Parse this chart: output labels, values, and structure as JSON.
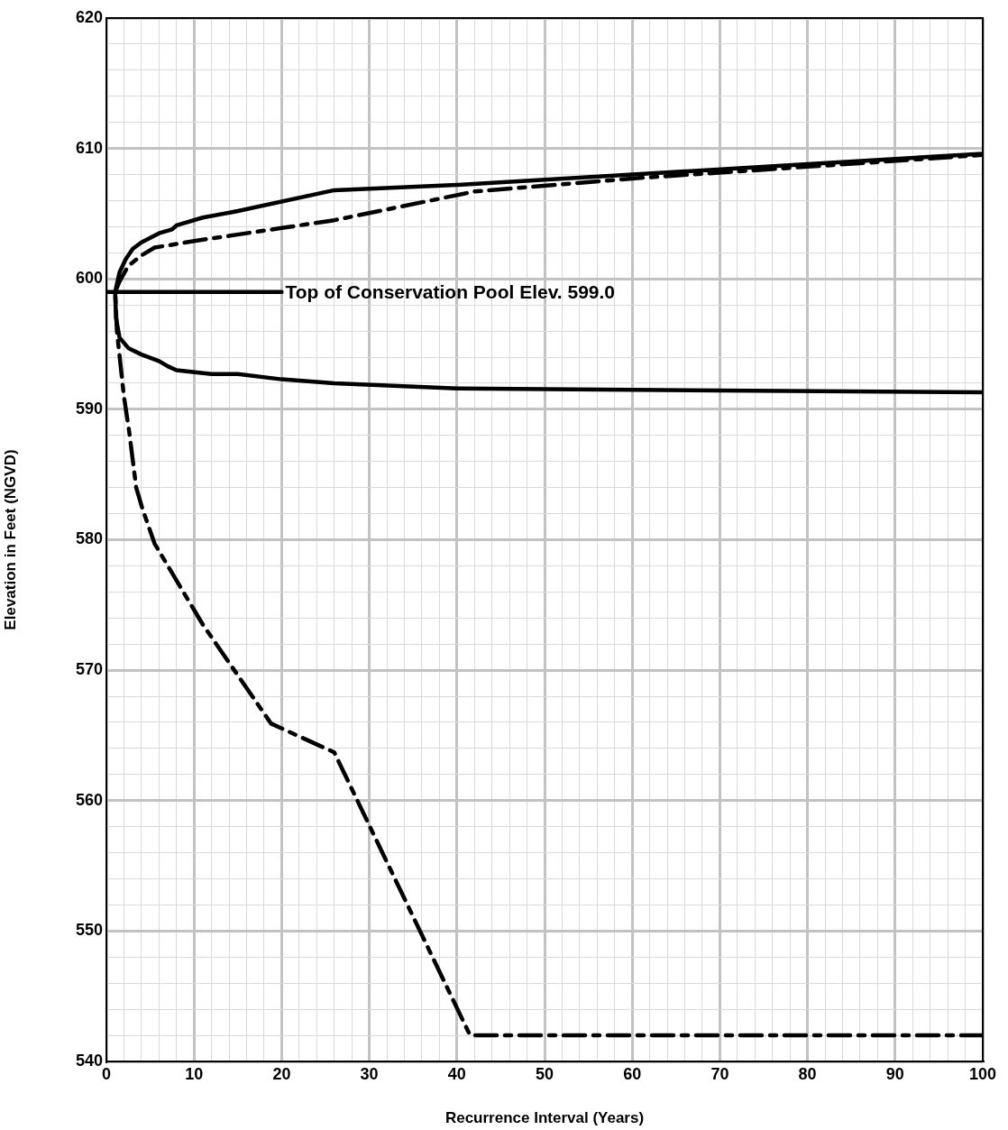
{
  "chart_data": {
    "type": "line",
    "xlabel": "Recurrence Interval (Years)",
    "ylabel": "Elevation in Feet (NGVD)",
    "xlim": [
      0,
      100
    ],
    "ylim": [
      540,
      620
    ],
    "xticks": [
      0,
      {
        "value": 2,
        "label": null
      },
      {
        "value": 4,
        "label": null
      },
      {
        "value": 6,
        "label": null
      },
      {
        "value": 8,
        "label": null
      },
      10,
      {
        "value": 12,
        "label": null
      },
      {
        "value": 14,
        "label": null
      },
      {
        "value": 16,
        "label": null
      },
      {
        "value": 18,
        "label": null
      },
      20,
      {
        "value": 22,
        "label": null
      },
      {
        "value": 24,
        "label": null
      },
      {
        "value": 26,
        "label": null
      },
      {
        "value": 28,
        "label": null
      },
      30,
      {
        "value": 32,
        "label": null
      },
      {
        "value": 34,
        "label": null
      },
      {
        "value": 36,
        "label": null
      },
      {
        "value": 38,
        "label": null
      },
      40,
      {
        "value": 42,
        "label": null
      },
      {
        "value": 44,
        "label": null
      },
      {
        "value": 46,
        "label": null
      },
      {
        "value": 48,
        "label": null
      },
      50,
      {
        "value": 52,
        "label": null
      },
      {
        "value": 54,
        "label": null
      },
      {
        "value": 56,
        "label": null
      },
      {
        "value": 58,
        "label": null
      },
      60,
      {
        "value": 62,
        "label": null
      },
      {
        "value": 64,
        "label": null
      },
      {
        "value": 66,
        "label": null
      },
      {
        "value": 68,
        "label": null
      },
      70,
      {
        "value": 72,
        "label": null
      },
      {
        "value": 74,
        "label": null
      },
      {
        "value": 76,
        "label": null
      },
      {
        "value": 78,
        "label": null
      },
      80,
      {
        "value": 82,
        "label": null
      },
      {
        "value": 84,
        "label": null
      },
      {
        "value": 86,
        "label": null
      },
      {
        "value": 88,
        "label": null
      },
      90,
      {
        "value": 92,
        "label": null
      },
      {
        "value": 94,
        "label": null
      },
      {
        "value": 96,
        "label": null
      },
      {
        "value": 98,
        "label": null
      },
      100
    ],
    "yticks": [
      540,
      {
        "value": 542,
        "label": null
      },
      {
        "value": 544,
        "label": null
      },
      {
        "value": 546,
        "label": null
      },
      {
        "value": 548,
        "label": null
      },
      550,
      {
        "value": 552,
        "label": null
      },
      {
        "value": 554,
        "label": null
      },
      {
        "value": 556,
        "label": null
      },
      {
        "value": 558,
        "label": null
      },
      560,
      {
        "value": 562,
        "label": null
      },
      {
        "value": 564,
        "label": null
      },
      {
        "value": 566,
        "label": null
      },
      {
        "value": 568,
        "label": null
      },
      570,
      {
        "value": 572,
        "label": null
      },
      {
        "value": 574,
        "label": null
      },
      {
        "value": 576,
        "label": null
      },
      {
        "value": 578,
        "label": null
      },
      580,
      {
        "value": 582,
        "label": null
      },
      {
        "value": 584,
        "label": null
      },
      {
        "value": 586,
        "label": null
      },
      {
        "value": 588,
        "label": null
      },
      590,
      {
        "value": 592,
        "label": null
      },
      {
        "value": 594,
        "label": null
      },
      {
        "value": 596,
        "label": null
      },
      {
        "value": 598,
        "label": null
      },
      600,
      {
        "value": 602,
        "label": null
      },
      {
        "value": 604,
        "label": null
      },
      {
        "value": 606,
        "label": null
      },
      {
        "value": 608,
        "label": null
      },
      610,
      {
        "value": 612,
        "label": null
      },
      {
        "value": 614,
        "label": null
      },
      {
        "value": 616,
        "label": null
      },
      {
        "value": 618,
        "label": null
      },
      620
    ],
    "grid": true,
    "legend": false,
    "marker": "none",
    "series": [
      {
        "color": "#000000",
        "line_style": "solid",
        "x": [
          100,
          60,
          40,
          26,
          20,
          15,
          12,
          8,
          7,
          6,
          4,
          2.5,
          1.5,
          1.1,
          1,
          1.5,
          2.2,
          3,
          4,
          6,
          7.5,
          8,
          11,
          15,
          26,
          40,
          60,
          80,
          100
        ],
        "values": [
          591.3,
          591.5,
          591.6,
          592,
          592.3,
          592.7,
          592.7,
          593,
          593.3,
          593.7,
          594.2,
          594.7,
          595.5,
          597,
          599,
          600.5,
          601.5,
          602.3,
          602.8,
          603.5,
          603.8,
          604.1,
          604.7,
          605.2,
          606.8,
          607.2,
          608,
          608.8,
          609.6
        ]
      },
      {
        "color": "#000000",
        "line_style": "dashed",
        "x": [
          100,
          41.5,
          26,
          18.8,
          11,
          5.5,
          4.1,
          3.4,
          2.6,
          2,
          1.6,
          1.2,
          1,
          1.5,
          2.5,
          4,
          5.5,
          10,
          12,
          20,
          26,
          42,
          60,
          80,
          100
        ],
        "values": [
          542,
          542,
          563.7,
          565.9,
          573.5,
          579.7,
          582.4,
          584,
          588.3,
          591,
          593.5,
          596,
          599,
          599.8,
          601,
          601.8,
          602.4,
          602.9,
          603.1,
          603.9,
          604.5,
          606.7,
          607.7,
          608.6,
          609.5
        ]
      },
      {
        "color": "#000000",
        "line_style": "solid",
        "x": [
          0,
          20
        ],
        "values": [
          599,
          599
        ]
      }
    ],
    "annotations": [
      {
        "text": "Top of Conservation Pool Elev. 599.0",
        "x": 20,
        "y": 599
      }
    ]
  }
}
